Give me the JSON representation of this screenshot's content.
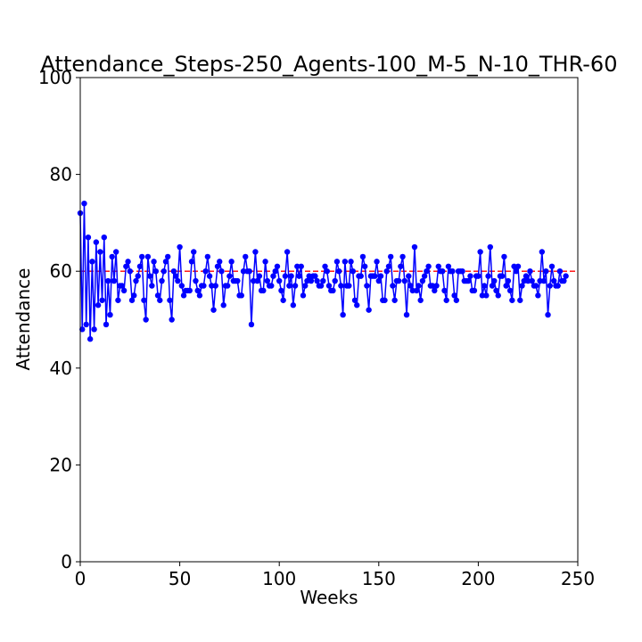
{
  "chart_data": {
    "type": "line",
    "title": "Attendance_Steps-250_Agents-100_M-5_N-10_THR-60",
    "xlabel": "Weeks",
    "ylabel": "Attendance",
    "xlim": [
      0,
      250
    ],
    "ylim": [
      0,
      100
    ],
    "xticks": [
      "0",
      "50",
      "100",
      "150",
      "200",
      "250"
    ],
    "yticks": [
      "0",
      "20",
      "40",
      "60",
      "80",
      "100"
    ],
    "threshold": 60,
    "colors": {
      "series": "#0000ff",
      "threshold": "#ff0000"
    },
    "grid": false,
    "series": [
      {
        "values": [
          72,
          48,
          74,
          49,
          67,
          46,
          62,
          48,
          66,
          53,
          64,
          54,
          67,
          49,
          58,
          51,
          63,
          58,
          64,
          54,
          57,
          57,
          56,
          61,
          62,
          60,
          54,
          55,
          58,
          59,
          61,
          63,
          54,
          50,
          63,
          59,
          57,
          62,
          60,
          55,
          54,
          58,
          60,
          62,
          63,
          54,
          50,
          60,
          59,
          58,
          65,
          57,
          55,
          56,
          56,
          56,
          62,
          64,
          58,
          56,
          55,
          57,
          57,
          60,
          63,
          59,
          57,
          52,
          57,
          61,
          62,
          60,
          53,
          57,
          57,
          59,
          62,
          58,
          58,
          58,
          55,
          55,
          60,
          63,
          60,
          60,
          49,
          58,
          64,
          58,
          59,
          56,
          56,
          62,
          58,
          57,
          57,
          59,
          60,
          61,
          58,
          56,
          54,
          59,
          64,
          57,
          59,
          53,
          57,
          61,
          59,
          61,
          55,
          57,
          58,
          59,
          58,
          59,
          59,
          58,
          57,
          57,
          58,
          61,
          60,
          57,
          56,
          56,
          58,
          62,
          60,
          57,
          51,
          62,
          57,
          57,
          62,
          60,
          54,
          53,
          59,
          59,
          63,
          61,
          57,
          52,
          59,
          59,
          59,
          62,
          58,
          59,
          54,
          54,
          60,
          61,
          63,
          57,
          54,
          58,
          58,
          61,
          63,
          58,
          51,
          59,
          57,
          56,
          65,
          56,
          57,
          54,
          58,
          59,
          60,
          61,
          57,
          57,
          56,
          57,
          61,
          60,
          60,
          56,
          54,
          61,
          60,
          60,
          55,
          54,
          60,
          60,
          60,
          58,
          58,
          58,
          59,
          56,
          56,
          59,
          59,
          64,
          55,
          57,
          55,
          59,
          65,
          57,
          58,
          56,
          55,
          59,
          59,
          63,
          57,
          58,
          56,
          54,
          61,
          60,
          61,
          54,
          57,
          58,
          59,
          58,
          60,
          58,
          57,
          57,
          55,
          58,
          64,
          58,
          60,
          51,
          57,
          61,
          58,
          57,
          57,
          60,
          58,
          58,
          59
        ]
      }
    ]
  }
}
